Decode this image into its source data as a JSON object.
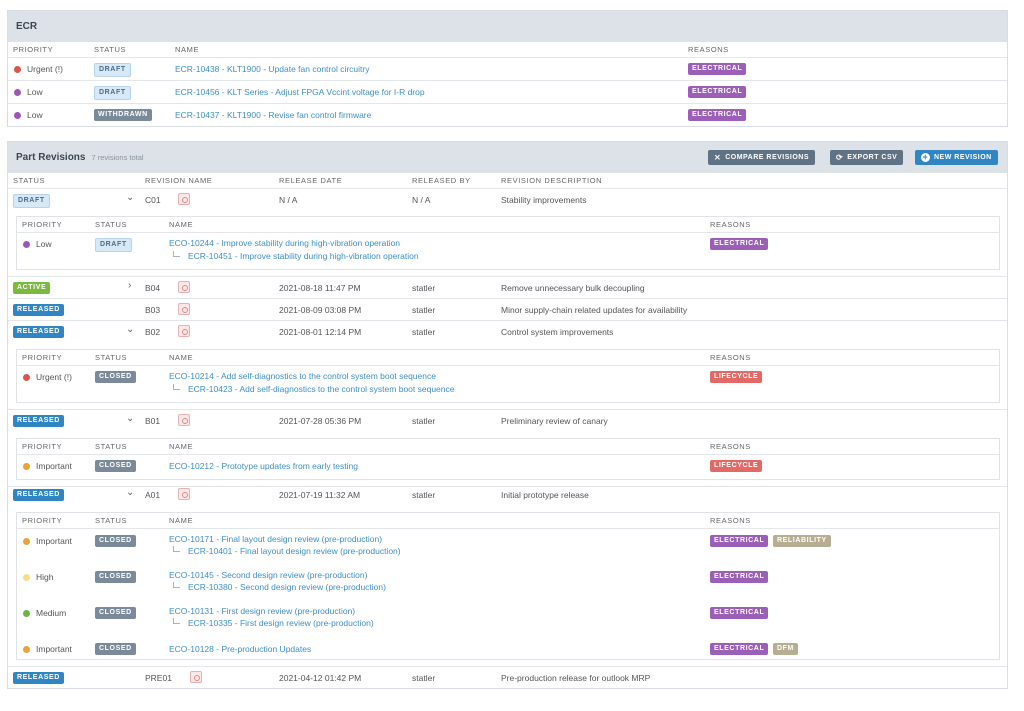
{
  "ecr": {
    "title": "ECR",
    "headers": {
      "priority": "PRIORITY",
      "status": "STATUS",
      "name": "NAME",
      "reasons": "REASONS"
    },
    "rows": [
      {
        "priority": "Urgent (!)",
        "priority_color": "#d9534f",
        "status": "DRAFT",
        "name": "ECR-10438 - KLT1900 - Update fan control circuitry",
        "reason": "ELECTRICAL"
      },
      {
        "priority": "Low",
        "priority_color": "#9b59b6",
        "status": "DRAFT",
        "name": "ECR-10456 - KLT Series - Adjust FPGA Vccint voltage for I-R drop",
        "reason": "ELECTRICAL"
      },
      {
        "priority": "Low",
        "priority_color": "#9b59b6",
        "status": "WITHDRAWN",
        "name": "ECR-10437 - KLT1900 - Revise fan control firmware",
        "reason": "ELECTRICAL"
      }
    ]
  },
  "revisions": {
    "title": "Part Revisions",
    "subtitle": "7 revisions total",
    "buttons": {
      "compare": "COMPARE REVISIONS",
      "export": "EXPORT CSV",
      "new": "NEW REVISION"
    },
    "headers": {
      "status": "STATUS",
      "name": "REVISION NAME",
      "date": "RELEASE DATE",
      "by": "RELEASED BY",
      "desc": "REVISION DESCRIPTION"
    },
    "sub_headers": {
      "priority": "PRIORITY",
      "status": "STATUS",
      "name": "NAME",
      "reasons": "REASONS"
    },
    "rows": [
      {
        "status": "DRAFT",
        "name": "C01",
        "date": "N / A",
        "by": "N / A",
        "desc": "Stability improvements"
      },
      {
        "status": "ACTIVE",
        "name": "B04",
        "date": "2021-08-18 11:47 PM",
        "by": "statler",
        "desc": "Remove unnecessary bulk decoupling"
      },
      {
        "status": "RELEASED",
        "name": "B03",
        "date": "2021-08-09 03:08 PM",
        "by": "statler",
        "desc": "Minor supply-chain related updates for availability"
      },
      {
        "status": "RELEASED",
        "name": "B02",
        "date": "2021-08-01 12:14 PM",
        "by": "statler",
        "desc": "Control system improvements"
      },
      {
        "status": "RELEASED",
        "name": "B01",
        "date": "2021-07-28 05:36 PM",
        "by": "statler",
        "desc": "Preliminary review of canary"
      },
      {
        "status": "RELEASED",
        "name": "A01",
        "date": "2021-07-19 11:32 AM",
        "by": "statler",
        "desc": "Initial prototype release"
      },
      {
        "status": "RELEASED",
        "name": "PRE01",
        "date": "2021-04-12 01:42 PM",
        "by": "statler",
        "desc": "Pre-production release for outlook MRP"
      }
    ],
    "c01_eco": [
      {
        "priority": "Low",
        "priority_color": "#9b59b6",
        "status": "DRAFT",
        "eco": "ECO-10244 - Improve stability during high-vibration operation",
        "ecr": "ECR-10451 - Improve stability during high-vibration operation",
        "reasons": [
          "ELECTRICAL"
        ]
      }
    ],
    "b02_eco": [
      {
        "priority": "Urgent (!)",
        "priority_color": "#d9534f",
        "status": "CLOSED",
        "eco": "ECO-10214 - Add self-diagnostics to the control system boot sequence",
        "ecr": "ECR-10423 - Add self-diagnostics to the control system boot sequence",
        "reasons": [
          "LIFECYCLE"
        ]
      }
    ],
    "b01_eco": [
      {
        "priority": "Important",
        "priority_color": "#e8a33d",
        "status": "CLOSED",
        "eco": "ECO-10212 - Prototype updates from early testing",
        "reasons": [
          "LIFECYCLE"
        ]
      }
    ],
    "a01_eco": [
      {
        "priority": "Important",
        "priority_color": "#e8a33d",
        "status": "CLOSED",
        "eco": "ECO-10171 - Final layout design review (pre-production)",
        "ecr": "ECR-10401 - Final layout design review (pre-production)",
        "reasons": [
          "ELECTRICAL",
          "RELIABILITY"
        ]
      },
      {
        "priority": "High",
        "priority_color": "#f3df8a",
        "status": "CLOSED",
        "eco": "ECO-10145 - Second design review (pre-production)",
        "ecr": "ECR-10380 - Second design review (pre-production)",
        "reasons": [
          "ELECTRICAL"
        ]
      },
      {
        "priority": "Medium",
        "priority_color": "#6cb33f",
        "status": "CLOSED",
        "eco": "ECO-10131 - First design review (pre-production)",
        "ecr": "ECR-10335 - First design review (pre-production)",
        "reasons": [
          "ELECTRICAL"
        ]
      },
      {
        "priority": "Important",
        "priority_color": "#e8a33d",
        "status": "CLOSED",
        "eco": "ECO-10128 - Pre-production Updates",
        "reasons": [
          "ELECTRICAL",
          "DFM"
        ]
      }
    ]
  }
}
